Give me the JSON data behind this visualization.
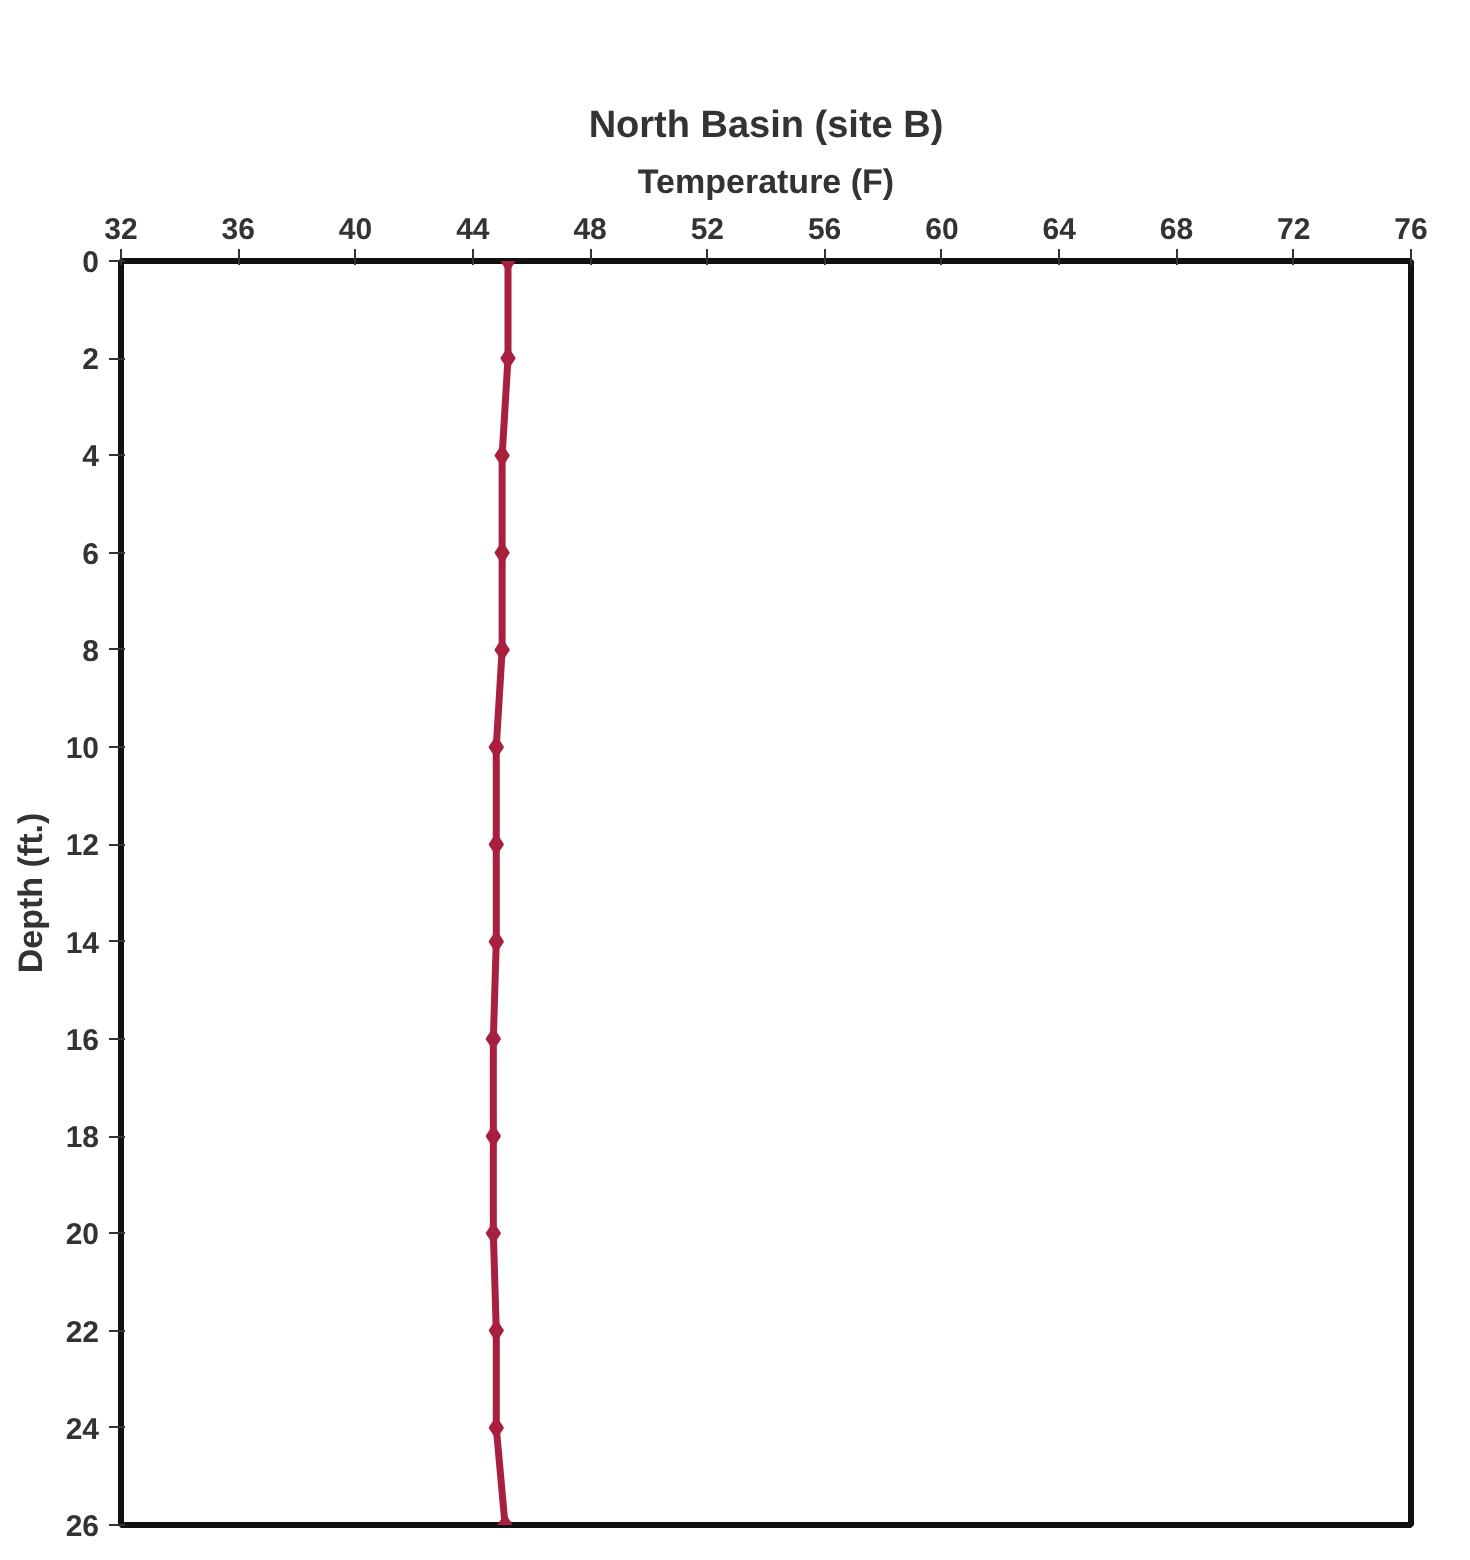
{
  "chart_data": {
    "type": "line",
    "title": "North Basin (site B)",
    "xlabel": "Temperature (F)",
    "ylabel": "Depth (ft.)",
    "series": [
      {
        "color": "#a8203f",
        "x": [
          45.2,
          45.2,
          45.0,
          45.0,
          45.0,
          44.8,
          44.8,
          44.8,
          44.7,
          44.7,
          44.7,
          44.8,
          44.8,
          45.1
        ],
        "values": [
          0,
          2,
          4,
          6,
          8,
          10,
          12,
          14,
          16,
          18,
          20,
          22,
          24,
          26
        ]
      }
    ],
    "xlim": [
      32,
      76
    ],
    "xticks": [
      32,
      36,
      40,
      44,
      48,
      52,
      56,
      60,
      64,
      68,
      72,
      76
    ],
    "ylim": [
      26,
      0
    ],
    "yticks": [
      0,
      2,
      4,
      6,
      8,
      10,
      12,
      14,
      16,
      18,
      20,
      22,
      24,
      26
    ],
    "grid": false,
    "marker": "diamond",
    "line_style": "solid"
  }
}
